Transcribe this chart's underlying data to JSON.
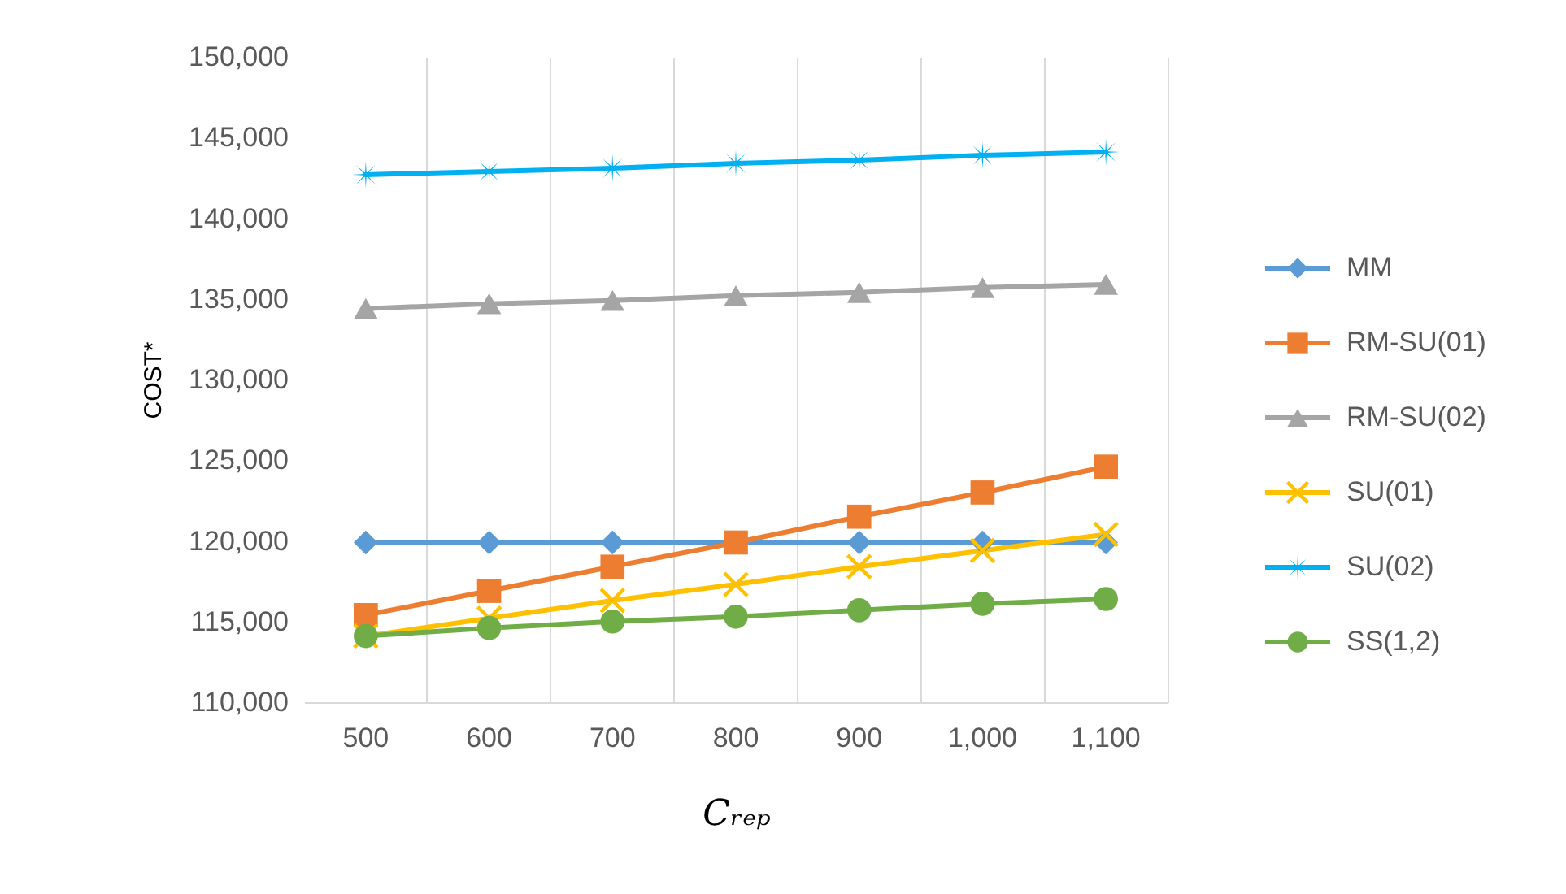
{
  "chart_data": {
    "type": "line",
    "xlabel": "Cᵣₑₚ",
    "ylabel": "COST*",
    "categories": [
      "500",
      "600",
      "700",
      "800",
      "900",
      "1,000",
      "1,100"
    ],
    "ylim": [
      110000,
      150000
    ],
    "yticks": [
      {
        "value": 110000,
        "label": "110,000"
      },
      {
        "value": 115000,
        "label": "115,000"
      },
      {
        "value": 120000,
        "label": "120,000"
      },
      {
        "value": 125000,
        "label": "125,000"
      },
      {
        "value": 130000,
        "label": "130,000"
      },
      {
        "value": 135000,
        "label": "135,000"
      },
      {
        "value": 140000,
        "label": "140,000"
      },
      {
        "value": 145000,
        "label": "145,000"
      },
      {
        "value": 150000,
        "label": "150,000"
      }
    ],
    "grid": "x",
    "legend": "right",
    "line_style": "solid",
    "series": [
      {
        "name": "MM",
        "color": "#5b9bd5",
        "marker": "diamond",
        "values": [
          119900,
          119900,
          119900,
          119900,
          119900,
          119900,
          119900
        ]
      },
      {
        "name": "RM-SU(01)",
        "color": "#ed7d31",
        "marker": "square",
        "values": [
          115400,
          116900,
          118400,
          119900,
          121500,
          123000,
          124600
        ]
      },
      {
        "name": "RM-SU(02)",
        "color": "#a5a5a5",
        "marker": "triangle",
        "values": [
          134400,
          134700,
          134900,
          135200,
          135400,
          135700,
          135900
        ]
      },
      {
        "name": "SU(01)",
        "color": "#ffc000",
        "marker": "cross",
        "values": [
          114100,
          115200,
          116300,
          117300,
          118400,
          119400,
          120400
        ]
      },
      {
        "name": "SU(02)",
        "color": "#00b0f0",
        "marker": "star",
        "values": [
          142700,
          142900,
          143100,
          143400,
          143600,
          143900,
          144100
        ]
      },
      {
        "name": "SS(1,2)",
        "color": "#70ad47",
        "marker": "circle",
        "values": [
          114100,
          114600,
          115000,
          115300,
          115700,
          116100,
          116400
        ]
      }
    ]
  }
}
